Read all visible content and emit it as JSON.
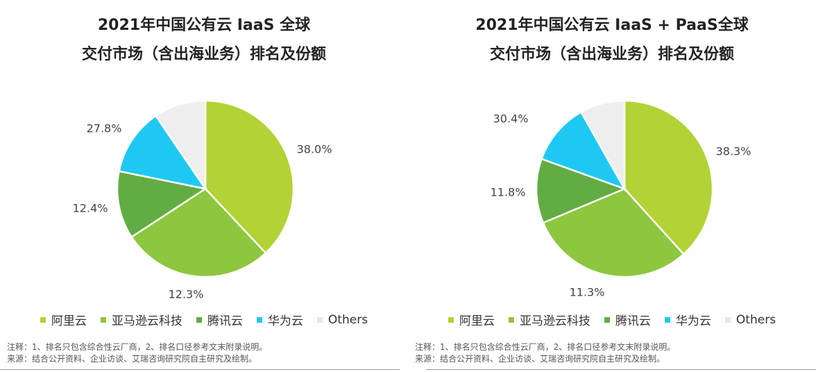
{
  "colors": {
    "aliyun": "#b2d235",
    "aws": "#8dc63f",
    "tencent": "#62ad43",
    "huawei": "#1fc8f2",
    "others": "#eeeeee"
  },
  "chart_data": [
    {
      "type": "pie",
      "title_line1": "2021年中国公有云 IaaS 全球",
      "title_line2": "交付市场（含出海业务）排名及份额",
      "legend_position": "bottom",
      "slices": [
        {
          "name": "阿里云",
          "value": 38.0,
          "label": "38.0%",
          "color": "#b2d235"
        },
        {
          "name": "亚马逊云科技",
          "value": 27.8,
          "label": "27.8%",
          "color": "#8dc63f"
        },
        {
          "name": "腾讯云",
          "value": 12.4,
          "label": "12.4%",
          "color": "#62ad43"
        },
        {
          "name": "华为云",
          "value": 12.3,
          "label": "12.3%",
          "color": "#1fc8f2"
        },
        {
          "name": "Others",
          "value": 9.5,
          "label": "",
          "color": "#eeeeee"
        }
      ],
      "notes": [
        "注释：1、排名只包含综合性云厂商，2、排名口径参考文末附录说明。",
        "来源：结合公开资料、企业访谈、艾瑞咨询研究院自主研究及绘制。"
      ]
    },
    {
      "type": "pie",
      "title_line1": "2021年中国公有云 IaaS + PaaS全球",
      "title_line2": "交付市场（含出海业务）排名及份额",
      "legend_position": "bottom",
      "slices": [
        {
          "name": "阿里云",
          "value": 38.3,
          "label": "38.3%",
          "color": "#b2d235"
        },
        {
          "name": "亚马逊云科技",
          "value": 30.4,
          "label": "30.4%",
          "color": "#8dc63f"
        },
        {
          "name": "腾讯云",
          "value": 11.8,
          "label": "11.8%",
          "color": "#62ad43"
        },
        {
          "name": "华为云",
          "value": 11.3,
          "label": "11.3%",
          "color": "#1fc8f2"
        },
        {
          "name": "Others",
          "value": 8.2,
          "label": "",
          "color": "#eeeeee"
        }
      ],
      "notes": [
        "注释：1、排名只包含综合性云厂商，2、排名口径参考文末附录说明。",
        "来源：结合公开资料、企业访谈、艾瑞咨询研究院自主研究及绘制。"
      ]
    }
  ]
}
